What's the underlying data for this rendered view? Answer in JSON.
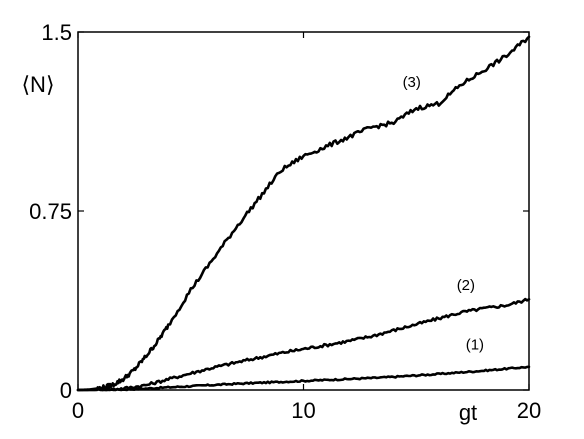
{
  "chart_data": {
    "type": "line",
    "xlabel": "gt",
    "ylabel": "⟨N⟩",
    "xlim": [
      0,
      20
    ],
    "ylim": [
      0,
      1.5
    ],
    "x_ticks": [
      0,
      10,
      20
    ],
    "x_tick_labels": [
      "0",
      "10",
      "20"
    ],
    "y_ticks": [
      0,
      0.75,
      1.5
    ],
    "y_tick_labels": [
      "0",
      "0.75",
      "1.5"
    ],
    "grid": false,
    "legend": "none",
    "series": [
      {
        "label": "(1)",
        "label_at": [
          17.6,
          0.17
        ],
        "points": [
          [
            0,
            0
          ],
          [
            1,
            0.0003
          ],
          [
            2,
            0.002
          ],
          [
            3,
            0.006
          ],
          [
            4,
            0.011
          ],
          [
            5,
            0.016
          ],
          [
            6,
            0.021
          ],
          [
            7,
            0.026
          ],
          [
            8,
            0.03
          ],
          [
            9,
            0.034
          ],
          [
            10,
            0.038
          ],
          [
            11,
            0.042
          ],
          [
            12,
            0.046
          ],
          [
            13,
            0.05
          ],
          [
            14,
            0.055
          ],
          [
            15,
            0.061
          ],
          [
            16,
            0.067
          ],
          [
            17,
            0.074
          ],
          [
            18,
            0.081
          ],
          [
            19,
            0.089
          ],
          [
            20,
            0.097
          ]
        ]
      },
      {
        "label": "(2)",
        "label_at": [
          17.2,
          0.42
        ],
        "points": [
          [
            0,
            0
          ],
          [
            1,
            0.001
          ],
          [
            2,
            0.006
          ],
          [
            3,
            0.02
          ],
          [
            4,
            0.045
          ],
          [
            5,
            0.07
          ],
          [
            6,
            0.094
          ],
          [
            7,
            0.115
          ],
          [
            8,
            0.135
          ],
          [
            9,
            0.155
          ],
          [
            10,
            0.172
          ],
          [
            11,
            0.188
          ],
          [
            12,
            0.205
          ],
          [
            13,
            0.225
          ],
          [
            14,
            0.25
          ],
          [
            15,
            0.275
          ],
          [
            16,
            0.3
          ],
          [
            17,
            0.325
          ],
          [
            18,
            0.342
          ],
          [
            19,
            0.355
          ],
          [
            20,
            0.38
          ]
        ]
      },
      {
        "label": "(3)",
        "label_at": [
          14.8,
          1.27
        ],
        "points": [
          [
            0,
            0
          ],
          [
            0.5,
            0.002
          ],
          [
            1,
            0.008
          ],
          [
            1.5,
            0.02
          ],
          [
            2,
            0.045
          ],
          [
            2.5,
            0.085
          ],
          [
            3,
            0.14
          ],
          [
            3.5,
            0.2
          ],
          [
            4,
            0.27
          ],
          [
            5,
            0.42
          ],
          [
            6,
            0.55
          ],
          [
            7,
            0.68
          ],
          [
            8,
            0.8
          ],
          [
            9,
            0.92
          ],
          [
            10,
            0.98
          ],
          [
            11,
            1.02
          ],
          [
            12,
            1.06
          ],
          [
            13,
            1.1
          ],
          [
            14,
            1.12
          ],
          [
            15,
            1.18
          ],
          [
            16,
            1.2
          ],
          [
            17,
            1.28
          ],
          [
            18,
            1.34
          ],
          [
            19,
            1.4
          ],
          [
            20,
            1.48
          ]
        ]
      }
    ]
  }
}
